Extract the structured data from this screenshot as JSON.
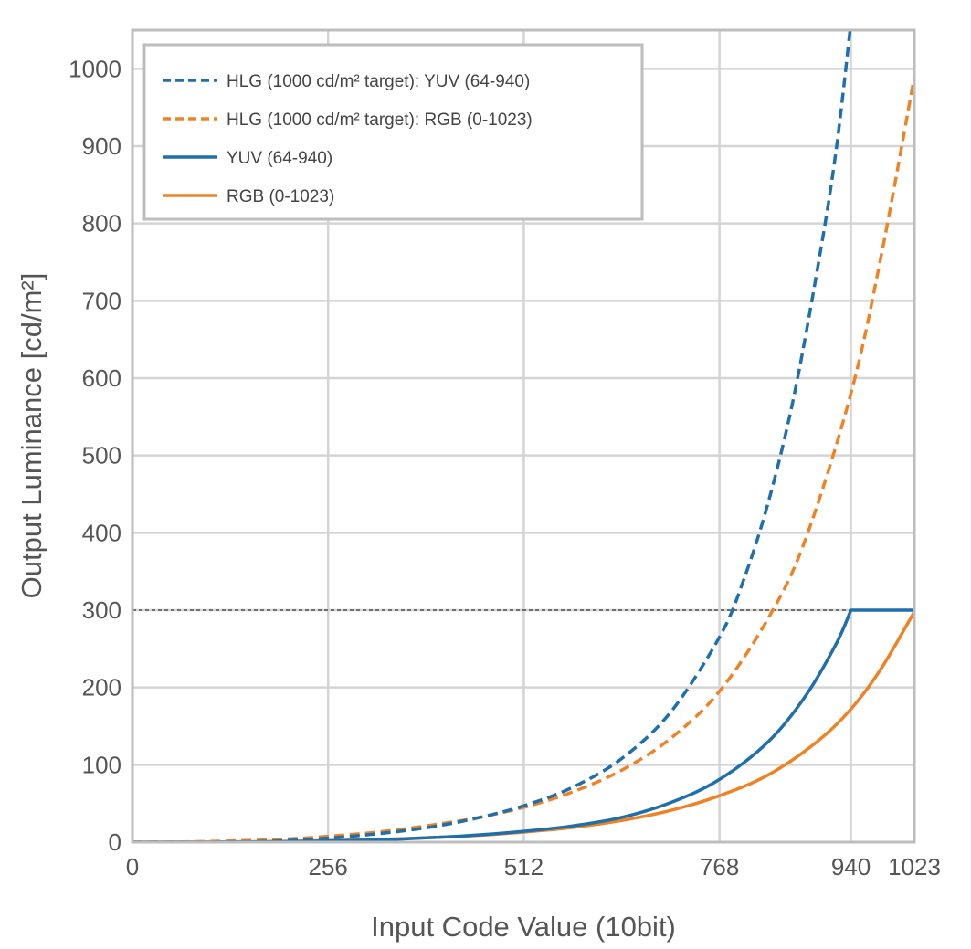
{
  "chart_data": {
    "type": "line",
    "xlabel": "Input Code Value (10bit)",
    "ylabel": "Output Luminance [cd/m²]",
    "xlim": [
      0,
      1023
    ],
    "ylim": [
      0,
      1050
    ],
    "xticks": [
      0,
      256,
      512,
      768,
      940,
      1023
    ],
    "yticks": [
      0,
      100,
      200,
      300,
      400,
      500,
      600,
      700,
      800,
      900,
      1000
    ],
    "grid": true,
    "legend_position": "top-left",
    "colors": {
      "blue": "#1f6fad",
      "orange": "#ee8326",
      "reference": "#333333",
      "grid": "#d4d4d4",
      "frame": "#bdbdbd"
    },
    "reference_line": {
      "y": 300,
      "style": "dashed"
    },
    "series": [
      {
        "name": "HLG (1000 cd/m² target): YUV (64-940)",
        "color": "#1f6fad",
        "style": "dashed",
        "x": [
          0,
          64,
          128,
          192,
          256,
          320,
          384,
          448,
          512,
          576,
          640,
          704,
          768,
          800,
          832,
          864,
          896,
          920,
          940
        ],
        "y": [
          0,
          0,
          0.3,
          1.5,
          5.2,
          10.8,
          18.6,
          30.5,
          47,
          71,
          108,
          168,
          265,
          340,
          440,
          570,
          740,
          890,
          1060
        ]
      },
      {
        "name": "HLG (1000 cd/m² target): RGB (0-1023)",
        "color": "#ee8326",
        "style": "dashed",
        "x": [
          0,
          64,
          128,
          192,
          256,
          320,
          384,
          448,
          512,
          576,
          640,
          704,
          768,
          832,
          880,
          940,
          980,
          1023
        ],
        "y": [
          0,
          0.3,
          1.5,
          3.5,
          7.5,
          13,
          21,
          31,
          45,
          65,
          93,
          134,
          195,
          290,
          390,
          580,
          760,
          990
        ]
      },
      {
        "name": "YUV (64-940)",
        "color": "#1f6fad",
        "style": "solid",
        "x": [
          0,
          64,
          128,
          192,
          256,
          320,
          384,
          448,
          512,
          576,
          640,
          704,
          768,
          832,
          880,
          920,
          940,
          1023
        ],
        "y": [
          0,
          0,
          0.1,
          0.5,
          1.5,
          3,
          5.5,
          9,
          14,
          21,
          32,
          51,
          81,
          130,
          188,
          255,
          300,
          300
        ]
      },
      {
        "name": "RGB (0-1023)",
        "color": "#ee8326",
        "style": "solid",
        "x": [
          0,
          64,
          128,
          192,
          256,
          320,
          384,
          448,
          512,
          576,
          640,
          704,
          768,
          832,
          896,
          940,
          980,
          1023
        ],
        "y": [
          0,
          0.1,
          0.4,
          1,
          2,
          3.5,
          5.5,
          8.5,
          13,
          19,
          28,
          41,
          60,
          87,
          130,
          172,
          225,
          298
        ]
      }
    ]
  }
}
